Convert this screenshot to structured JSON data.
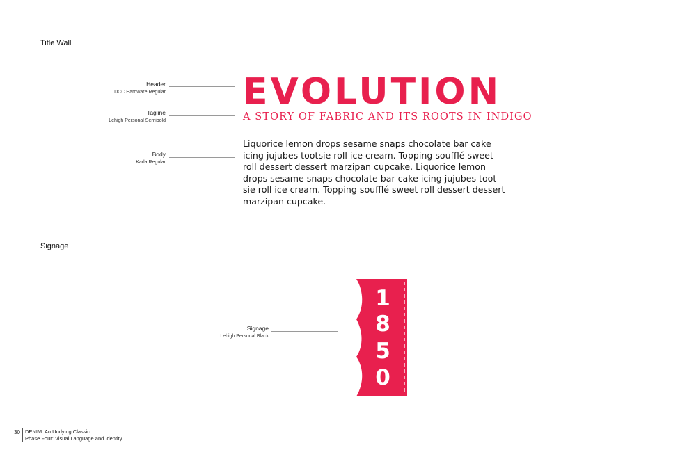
{
  "sections": {
    "title_wall": "Title Wall",
    "signage": "Signage"
  },
  "callouts": {
    "header": {
      "name": "Header",
      "font": "DCC Hardware Regular"
    },
    "tagline": {
      "name": "Tagline",
      "font": "Lehigh Personal Semibold"
    },
    "body": {
      "name": "Body",
      "font": "Karla Regular"
    },
    "signage": {
      "name": "Signage",
      "font": "Lehigh Personal Black"
    }
  },
  "sample": {
    "header": "EVOLUTION",
    "tagline": "A STORY OF FABRIC AND ITS ROOTS IN INDIGO",
    "body_lines": [
      "Liquorice lemon drops sesame snaps chocolate bar cake",
      "icing jujubes tootsie roll ice cream. Topping soufflé sweet",
      "roll dessert dessert marzipan cupcake. Liquorice lemon",
      "drops sesame snaps chocolate bar cake icing jujubes toot-",
      "sie roll ice cream. Topping soufflé sweet roll dessert dessert",
      "marzipan cupcake."
    ]
  },
  "sign": {
    "digits": [
      "1",
      "8",
      "5",
      "0"
    ],
    "color": "#e8204e"
  },
  "footer": {
    "page_number": "30",
    "line1": "DENIM: An Undying Classic",
    "line2": "Phase Four: Visual Language and Identity"
  }
}
